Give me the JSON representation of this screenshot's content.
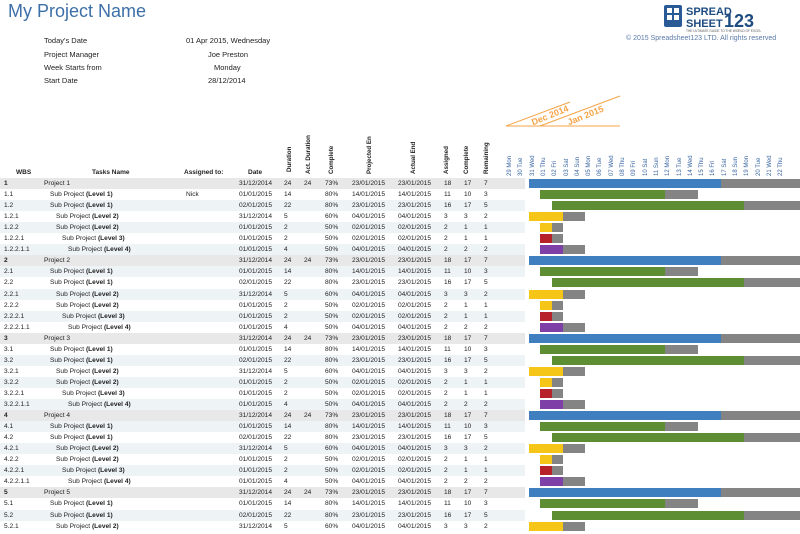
{
  "title": "My Project Name",
  "info": [
    {
      "label": "Today's Date",
      "value": "01 Apr 2015, Wednesday"
    },
    {
      "label": "Project Manager",
      "value": "Joe Preston"
    },
    {
      "label": "Week Starts from",
      "value": "Monday"
    },
    {
      "label": "Start Date",
      "value": "28/12/2014"
    }
  ],
  "logo": {
    "line1": "SPREAD",
    "line2": "SHEET",
    "num": "123",
    "tagline": "THE ULTIMATE GUIDE TO THE WORLD OF EXCEL"
  },
  "copyright": "© 2015 Spreadsheet123 LTD. All rights reserved",
  "headers": {
    "wbs": "WBS",
    "tasks": "Tasks Name",
    "assigned_to": "Assigned to:",
    "date": "Date",
    "duration": "Duration",
    "act_duration": "Act. Duration",
    "complete_pct": "Complete",
    "projected_end": "Projected En",
    "actual_end": "Actual End",
    "assigned": "Assigned",
    "complete": "Complete",
    "remaining": "Remaining"
  },
  "timeline_labels": [
    "Dec 2014",
    "Jan 2015"
  ],
  "days": [
    "29 Mon",
    "30 Tue",
    "31 Wed",
    "01 Thu",
    "02 Fri",
    "03 Sat",
    "04 Sun",
    "05 Mon",
    "06 Tue",
    "07 Wed",
    "08 Thu",
    "09 Fri",
    "10 Sat",
    "11 Sun",
    "12 Mon",
    "13 Tue",
    "14 Wed",
    "15 Thu",
    "16 Fri",
    "17 Sat",
    "18 Sun",
    "19 Mon",
    "20 Tue",
    "21 Wed",
    "22 Thu"
  ],
  "colors": {
    "project": "#3f7fc0",
    "level1": "#5d8e34",
    "level2": "#f5c518",
    "level3": "#b7212a",
    "level4": "#7e3fa6",
    "remaining": "#848484",
    "project_row": "#e8e8e8",
    "alt_row": "#eef3f6"
  },
  "rows": [
    {
      "wbs": "1",
      "task": "Project 1",
      "level": "",
      "assigned_to": "",
      "date": "31/12/2014",
      "duration": "24",
      "act_duration": "24",
      "pct": "73%",
      "projected_end": "23/01/2015",
      "actual_end": "23/01/2015",
      "assigned": "18",
      "complete": "17",
      "remaining": "7",
      "type": "project"
    },
    {
      "wbs": "1.1",
      "task": "Sub Project",
      "level": "(Level 1)",
      "assigned_to": "Nick",
      "date": "01/01/2015",
      "duration": "14",
      "act_duration": "",
      "pct": "80%",
      "projected_end": "14/01/2015",
      "actual_end": "14/01/2015",
      "assigned": "11",
      "complete": "10",
      "remaining": "3",
      "type": "level1"
    },
    {
      "wbs": "1.2",
      "task": "Sub Project",
      "level": "(Level 1)",
      "assigned_to": "",
      "date": "02/01/2015",
      "duration": "22",
      "act_duration": "",
      "pct": "80%",
      "projected_end": "23/01/2015",
      "actual_end": "23/01/2015",
      "assigned": "16",
      "complete": "17",
      "remaining": "5",
      "type": "level1b"
    },
    {
      "wbs": "1.2.1",
      "task": "Sub Project",
      "level": "(Level 2)",
      "assigned_to": "",
      "date": "31/12/2014",
      "duration": "5",
      "act_duration": "",
      "pct": "60%",
      "projected_end": "04/01/2015",
      "actual_end": "04/01/2015",
      "assigned": "3",
      "complete": "3",
      "remaining": "2",
      "type": "level2"
    },
    {
      "wbs": "1.2.2",
      "task": "Sub Project",
      "level": "(Level 2)",
      "assigned_to": "",
      "date": "01/01/2015",
      "duration": "2",
      "act_duration": "",
      "pct": "50%",
      "projected_end": "02/01/2015",
      "actual_end": "02/01/2015",
      "assigned": "2",
      "complete": "1",
      "remaining": "1",
      "type": "level2b"
    },
    {
      "wbs": "1.2.2.1",
      "task": "Sub Project",
      "level": "(Level 3)",
      "assigned_to": "",
      "date": "01/01/2015",
      "duration": "2",
      "act_duration": "",
      "pct": "50%",
      "projected_end": "02/01/2015",
      "actual_end": "02/01/2015",
      "assigned": "2",
      "complete": "1",
      "remaining": "1",
      "type": "level3"
    },
    {
      "wbs": "1.2.2.1.1",
      "task": "Sub Project",
      "level": "(Level 4)",
      "assigned_to": "",
      "date": "01/01/2015",
      "duration": "4",
      "act_duration": "",
      "pct": "50%",
      "projected_end": "04/01/2015",
      "actual_end": "04/01/2015",
      "assigned": "2",
      "complete": "2",
      "remaining": "2",
      "type": "level4"
    },
    {
      "wbs": "2",
      "task": "Project 2",
      "level": "",
      "assigned_to": "",
      "date": "31/12/2014",
      "duration": "24",
      "act_duration": "24",
      "pct": "73%",
      "projected_end": "23/01/2015",
      "actual_end": "23/01/2015",
      "assigned": "18",
      "complete": "17",
      "remaining": "7",
      "type": "project"
    },
    {
      "wbs": "2.1",
      "task": "Sub Project",
      "level": "(Level 1)",
      "assigned_to": "",
      "date": "01/01/2015",
      "duration": "14",
      "act_duration": "",
      "pct": "80%",
      "projected_end": "14/01/2015",
      "actual_end": "14/01/2015",
      "assigned": "11",
      "complete": "10",
      "remaining": "3",
      "type": "level1"
    },
    {
      "wbs": "2.2",
      "task": "Sub Project",
      "level": "(Level 1)",
      "assigned_to": "",
      "date": "02/01/2015",
      "duration": "22",
      "act_duration": "",
      "pct": "80%",
      "projected_end": "23/01/2015",
      "actual_end": "23/01/2015",
      "assigned": "16",
      "complete": "17",
      "remaining": "5",
      "type": "level1b"
    },
    {
      "wbs": "2.2.1",
      "task": "Sub Project",
      "level": "(Level 2)",
      "assigned_to": "",
      "date": "31/12/2014",
      "duration": "5",
      "act_duration": "",
      "pct": "60%",
      "projected_end": "04/01/2015",
      "actual_end": "04/01/2015",
      "assigned": "3",
      "complete": "3",
      "remaining": "2",
      "type": "level2"
    },
    {
      "wbs": "2.2.2",
      "task": "Sub Project",
      "level": "(Level 2)",
      "assigned_to": "",
      "date": "01/01/2015",
      "duration": "2",
      "act_duration": "",
      "pct": "50%",
      "projected_end": "02/01/2015",
      "actual_end": "02/01/2015",
      "assigned": "2",
      "complete": "1",
      "remaining": "1",
      "type": "level2b"
    },
    {
      "wbs": "2.2.2.1",
      "task": "Sub Project",
      "level": "(Level 3)",
      "assigned_to": "",
      "date": "01/01/2015",
      "duration": "2",
      "act_duration": "",
      "pct": "50%",
      "projected_end": "02/01/2015",
      "actual_end": "02/01/2015",
      "assigned": "2",
      "complete": "1",
      "remaining": "1",
      "type": "level3"
    },
    {
      "wbs": "2.2.2.1.1",
      "task": "Sub Project",
      "level": "(Level 4)",
      "assigned_to": "",
      "date": "01/01/2015",
      "duration": "4",
      "act_duration": "",
      "pct": "50%",
      "projected_end": "04/01/2015",
      "actual_end": "04/01/2015",
      "assigned": "2",
      "complete": "2",
      "remaining": "2",
      "type": "level4"
    },
    {
      "wbs": "3",
      "task": "Project 3",
      "level": "",
      "assigned_to": "",
      "date": "31/12/2014",
      "duration": "24",
      "act_duration": "24",
      "pct": "73%",
      "projected_end": "23/01/2015",
      "actual_end": "23/01/2015",
      "assigned": "18",
      "complete": "17",
      "remaining": "7",
      "type": "project"
    },
    {
      "wbs": "3.1",
      "task": "Sub Project",
      "level": "(Level 1)",
      "assigned_to": "",
      "date": "01/01/2015",
      "duration": "14",
      "act_duration": "",
      "pct": "80%",
      "projected_end": "14/01/2015",
      "actual_end": "14/01/2015",
      "assigned": "11",
      "complete": "10",
      "remaining": "3",
      "type": "level1"
    },
    {
      "wbs": "3.2",
      "task": "Sub Project",
      "level": "(Level 1)",
      "assigned_to": "",
      "date": "02/01/2015",
      "duration": "22",
      "act_duration": "",
      "pct": "80%",
      "projected_end": "23/01/2015",
      "actual_end": "23/01/2015",
      "assigned": "16",
      "complete": "17",
      "remaining": "5",
      "type": "level1b"
    },
    {
      "wbs": "3.2.1",
      "task": "Sub Project",
      "level": "(Level 2)",
      "assigned_to": "",
      "date": "31/12/2014",
      "duration": "5",
      "act_duration": "",
      "pct": "60%",
      "projected_end": "04/01/2015",
      "actual_end": "04/01/2015",
      "assigned": "3",
      "complete": "3",
      "remaining": "2",
      "type": "level2"
    },
    {
      "wbs": "3.2.2",
      "task": "Sub Project",
      "level": "(Level 2)",
      "assigned_to": "",
      "date": "01/01/2015",
      "duration": "2",
      "act_duration": "",
      "pct": "50%",
      "projected_end": "02/01/2015",
      "actual_end": "02/01/2015",
      "assigned": "2",
      "complete": "1",
      "remaining": "1",
      "type": "level2b"
    },
    {
      "wbs": "3.2.2.1",
      "task": "Sub Project",
      "level": "(Level 3)",
      "assigned_to": "",
      "date": "01/01/2015",
      "duration": "2",
      "act_duration": "",
      "pct": "50%",
      "projected_end": "02/01/2015",
      "actual_end": "02/01/2015",
      "assigned": "2",
      "complete": "1",
      "remaining": "1",
      "type": "level3"
    },
    {
      "wbs": "3.2.2.1.1",
      "task": "Sub Project",
      "level": "(Level 4)",
      "assigned_to": "",
      "date": "01/01/2015",
      "duration": "4",
      "act_duration": "",
      "pct": "50%",
      "projected_end": "04/01/2015",
      "actual_end": "04/01/2015",
      "assigned": "2",
      "complete": "2",
      "remaining": "2",
      "type": "level4"
    },
    {
      "wbs": "4",
      "task": "Project 4",
      "level": "",
      "assigned_to": "",
      "date": "31/12/2014",
      "duration": "24",
      "act_duration": "24",
      "pct": "73%",
      "projected_end": "23/01/2015",
      "actual_end": "23/01/2015",
      "assigned": "18",
      "complete": "17",
      "remaining": "7",
      "type": "project"
    },
    {
      "wbs": "4.1",
      "task": "Sub Project",
      "level": "(Level 1)",
      "assigned_to": "",
      "date": "01/01/2015",
      "duration": "14",
      "act_duration": "",
      "pct": "80%",
      "projected_end": "14/01/2015",
      "actual_end": "14/01/2015",
      "assigned": "11",
      "complete": "10",
      "remaining": "3",
      "type": "level1"
    },
    {
      "wbs": "4.2",
      "task": "Sub Project",
      "level": "(Level 1)",
      "assigned_to": "",
      "date": "02/01/2015",
      "duration": "22",
      "act_duration": "",
      "pct": "80%",
      "projected_end": "23/01/2015",
      "actual_end": "23/01/2015",
      "assigned": "16",
      "complete": "17",
      "remaining": "5",
      "type": "level1b"
    },
    {
      "wbs": "4.2.1",
      "task": "Sub Project",
      "level": "(Level 2)",
      "assigned_to": "",
      "date": "31/12/2014",
      "duration": "5",
      "act_duration": "",
      "pct": "60%",
      "projected_end": "04/01/2015",
      "actual_end": "04/01/2015",
      "assigned": "3",
      "complete": "3",
      "remaining": "2",
      "type": "level2"
    },
    {
      "wbs": "4.2.2",
      "task": "Sub Project",
      "level": "(Level 2)",
      "assigned_to": "",
      "date": "01/01/2015",
      "duration": "2",
      "act_duration": "",
      "pct": "50%",
      "projected_end": "02/01/2015",
      "actual_end": "02/01/2015",
      "assigned": "2",
      "complete": "1",
      "remaining": "1",
      "type": "level2b"
    },
    {
      "wbs": "4.2.2.1",
      "task": "Sub Project",
      "level": "(Level 3)",
      "assigned_to": "",
      "date": "01/01/2015",
      "duration": "2",
      "act_duration": "",
      "pct": "50%",
      "projected_end": "02/01/2015",
      "actual_end": "02/01/2015",
      "assigned": "2",
      "complete": "1",
      "remaining": "1",
      "type": "level3"
    },
    {
      "wbs": "4.2.2.1.1",
      "task": "Sub Project",
      "level": "(Level 4)",
      "assigned_to": "",
      "date": "01/01/2015",
      "duration": "4",
      "act_duration": "",
      "pct": "50%",
      "projected_end": "04/01/2015",
      "actual_end": "04/01/2015",
      "assigned": "2",
      "complete": "2",
      "remaining": "2",
      "type": "level4"
    },
    {
      "wbs": "5",
      "task": "Project 5",
      "level": "",
      "assigned_to": "",
      "date": "31/12/2014",
      "duration": "24",
      "act_duration": "24",
      "pct": "73%",
      "projected_end": "23/01/2015",
      "actual_end": "23/01/2015",
      "assigned": "18",
      "complete": "17",
      "remaining": "7",
      "type": "project"
    },
    {
      "wbs": "5.1",
      "task": "Sub Project",
      "level": "(Level 1)",
      "assigned_to": "",
      "date": "01/01/2015",
      "duration": "14",
      "act_duration": "",
      "pct": "80%",
      "projected_end": "14/01/2015",
      "actual_end": "14/01/2015",
      "assigned": "11",
      "complete": "10",
      "remaining": "3",
      "type": "level1"
    },
    {
      "wbs": "5.2",
      "task": "Sub Project",
      "level": "(Level 1)",
      "assigned_to": "",
      "date": "02/01/2015",
      "duration": "22",
      "act_duration": "",
      "pct": "80%",
      "projected_end": "23/01/2015",
      "actual_end": "23/01/2015",
      "assigned": "16",
      "complete": "17",
      "remaining": "5",
      "type": "level1b"
    },
    {
      "wbs": "5.2.1",
      "task": "Sub Project",
      "level": "(Level 2)",
      "assigned_to": "",
      "date": "31/12/2014",
      "duration": "5",
      "act_duration": "",
      "pct": "60%",
      "projected_end": "04/01/2015",
      "actual_end": "04/01/2015",
      "assigned": "3",
      "complete": "3",
      "remaining": "2",
      "type": "level2"
    }
  ]
}
